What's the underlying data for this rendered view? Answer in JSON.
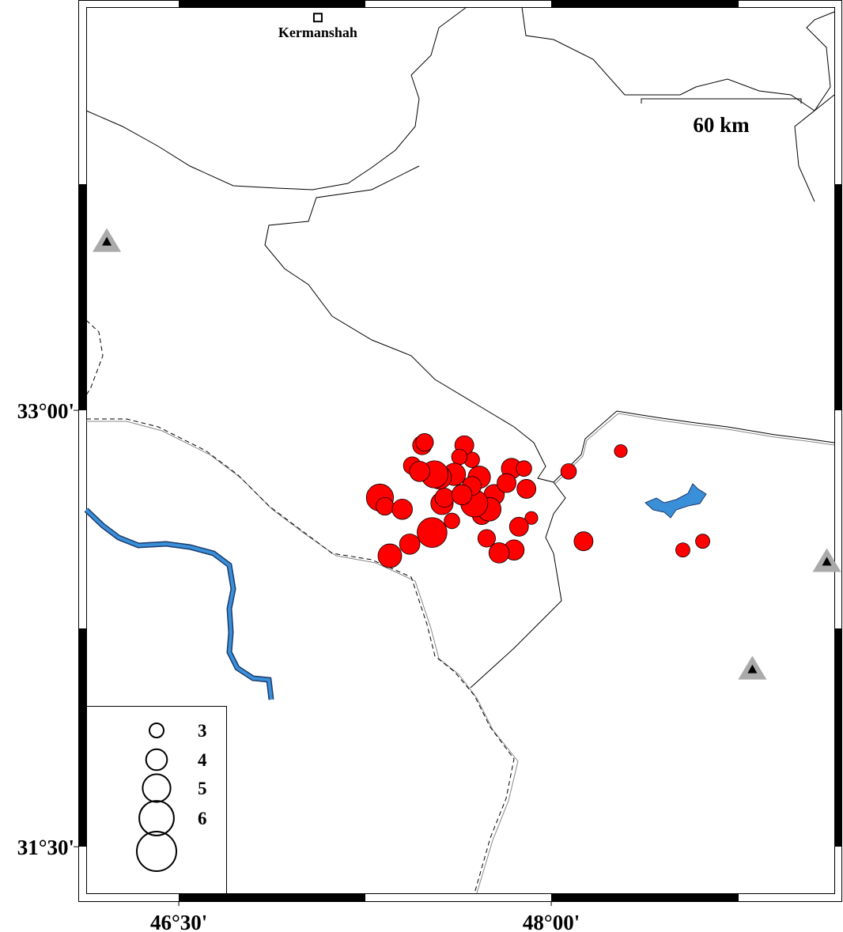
{
  "map": {
    "lon_range": [
      46.127,
      49.14
    ],
    "lat_range": [
      31.34,
      34.386
    ],
    "lon_ticks": [
      {
        "value": 46.5,
        "label": "46°30'"
      },
      {
        "value": 48,
        "label": "48°00'"
      }
    ],
    "lat_ticks": [
      {
        "value": 33,
        "label": "33°00'"
      },
      {
        "value": 31.5,
        "label": "31°30'"
      }
    ],
    "city": {
      "name": "Kermanshah",
      "lon": 47.06,
      "lat": 34.35
    },
    "scale_label": "60 km",
    "event_color": "#ff0000",
    "stations": [
      {
        "lon": 46.21,
        "lat": 33.58
      },
      {
        "lon": 49.11,
        "lat": 32.48
      },
      {
        "lon": 48.81,
        "lat": 32.11
      }
    ],
    "legend_magnitudes": [
      3,
      4,
      5,
      6
    ],
    "events": [
      {
        "lon": 48.28,
        "lat": 32.86,
        "mag": 2.8
      },
      {
        "lon": 48.07,
        "lat": 32.79,
        "mag": 3.2
      },
      {
        "lon": 48.13,
        "lat": 32.55,
        "mag": 3.7
      },
      {
        "lon": 48.53,
        "lat": 32.52,
        "mag": 3.0
      },
      {
        "lon": 48.61,
        "lat": 32.55,
        "mag": 3.0
      },
      {
        "lon": 47.92,
        "lat": 32.63,
        "mag": 2.8
      },
      {
        "lon": 47.9,
        "lat": 32.73,
        "mag": 3.7
      },
      {
        "lon": 47.87,
        "lat": 32.6,
        "mag": 3.7
      },
      {
        "lon": 47.84,
        "lat": 32.8,
        "mag": 3.9
      },
      {
        "lon": 47.89,
        "lat": 32.8,
        "mag": 3.2
      },
      {
        "lon": 47.85,
        "lat": 32.52,
        "mag": 3.9
      },
      {
        "lon": 47.79,
        "lat": 32.51,
        "mag": 3.9
      },
      {
        "lon": 47.74,
        "lat": 32.56,
        "mag": 3.5
      },
      {
        "lon": 47.72,
        "lat": 32.64,
        "mag": 3.7
      },
      {
        "lon": 47.77,
        "lat": 32.71,
        "mag": 3.9
      },
      {
        "lon": 47.75,
        "lat": 32.66,
        "mag": 4.4
      },
      {
        "lon": 47.69,
        "lat": 32.68,
        "mag": 4.9
      },
      {
        "lon": 47.71,
        "lat": 32.77,
        "mag": 4.2
      },
      {
        "lon": 47.68,
        "lat": 32.74,
        "mag": 3.7
      },
      {
        "lon": 47.68,
        "lat": 32.83,
        "mag": 3.2
      },
      {
        "lon": 47.65,
        "lat": 32.88,
        "mag": 3.7
      },
      {
        "lon": 47.63,
        "lat": 32.84,
        "mag": 3.2
      },
      {
        "lon": 47.61,
        "lat": 32.78,
        "mag": 4.2
      },
      {
        "lon": 47.56,
        "lat": 32.68,
        "mag": 4.2
      },
      {
        "lon": 47.55,
        "lat": 32.77,
        "mag": 4.4
      },
      {
        "lon": 47.53,
        "lat": 32.78,
        "mag": 4.9
      },
      {
        "lon": 47.52,
        "lat": 32.58,
        "mag": 5.3
      },
      {
        "lon": 47.6,
        "lat": 32.62,
        "mag": 3.2
      },
      {
        "lon": 47.48,
        "lat": 32.88,
        "mag": 3.7
      },
      {
        "lon": 47.49,
        "lat": 32.89,
        "mag": 3.5
      },
      {
        "lon": 47.44,
        "lat": 32.81,
        "mag": 3.5
      },
      {
        "lon": 47.47,
        "lat": 32.79,
        "mag": 3.9
      },
      {
        "lon": 47.31,
        "lat": 32.7,
        "mag": 4.9
      },
      {
        "lon": 47.33,
        "lat": 32.67,
        "mag": 3.5
      },
      {
        "lon": 47.4,
        "lat": 32.66,
        "mag": 3.9
      },
      {
        "lon": 47.43,
        "lat": 32.54,
        "mag": 3.9
      },
      {
        "lon": 47.35,
        "lat": 32.5,
        "mag": 4.4
      },
      {
        "lon": 47.57,
        "lat": 32.7,
        "mag": 3.7
      },
      {
        "lon": 47.64,
        "lat": 32.71,
        "mag": 3.9
      },
      {
        "lon": 47.82,
        "lat": 32.75,
        "mag": 3.7
      }
    ]
  }
}
